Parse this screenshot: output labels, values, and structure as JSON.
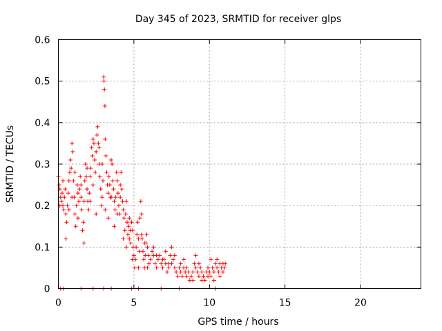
{
  "chart_data": {
    "type": "scatter",
    "title": "Day 345 of 2023, SRMTID for receiver glps",
    "xlabel": "GPS time / hours",
    "ylabel": "SRMTID / TECUs",
    "xlim": [
      0,
      24
    ],
    "ylim": [
      0,
      0.6
    ],
    "xticks": [
      0,
      5,
      10,
      15,
      20
    ],
    "xtick_labels": [
      "0",
      "5",
      "10",
      "15",
      "20"
    ],
    "yticks": [
      0,
      0.1,
      0.2,
      0.3,
      0.4,
      0.5,
      0.6
    ],
    "ytick_labels": [
      "0",
      "0.1",
      "0.2",
      "0.3",
      "0.4",
      "0.5",
      "0.6"
    ],
    "grid": true,
    "marker": "+",
    "color": "#ff0000",
    "series": [
      {
        "name": "SRMTID",
        "points": [
          [
            0.0,
            0.27
          ],
          [
            0.05,
            0.25
          ],
          [
            0.1,
            0.24
          ],
          [
            0.15,
            0.22
          ],
          [
            0.2,
            0.21
          ],
          [
            0.25,
            0.23
          ],
          [
            0.3,
            0.2
          ],
          [
            0.35,
            0.19
          ],
          [
            0.4,
            0.22
          ],
          [
            0.45,
            0.24
          ],
          [
            0.5,
            0.18
          ],
          [
            0.55,
            0.16
          ],
          [
            0.6,
            0.2
          ],
          [
            0.65,
            0.23
          ],
          [
            0.7,
            0.26
          ],
          [
            0.75,
            0.28
          ],
          [
            0.8,
            0.31
          ],
          [
            0.85,
            0.29
          ],
          [
            0.9,
            0.35
          ],
          [
            0.95,
            0.33
          ],
          [
            1.0,
            0.26
          ],
          [
            1.05,
            0.22
          ],
          [
            1.1,
            0.18
          ],
          [
            1.15,
            0.15
          ],
          [
            1.2,
            0.2
          ],
          [
            1.25,
            0.25
          ],
          [
            1.3,
            0.23
          ],
          [
            1.35,
            0.21
          ],
          [
            1.4,
            0.24
          ],
          [
            1.45,
            0.27
          ],
          [
            1.5,
            0.22
          ],
          [
            1.55,
            0.19
          ],
          [
            1.6,
            0.14
          ],
          [
            1.65,
            0.16
          ],
          [
            1.7,
            0.21
          ],
          [
            1.75,
            0.26
          ],
          [
            1.8,
            0.3
          ],
          [
            1.85,
            0.27
          ],
          [
            1.9,
            0.24
          ],
          [
            1.95,
            0.21
          ],
          [
            2.0,
            0.19
          ],
          [
            2.05,
            0.23
          ],
          [
            2.1,
            0.27
          ],
          [
            2.15,
            0.29
          ],
          [
            2.2,
            0.34
          ],
          [
            2.25,
            0.32
          ],
          [
            2.3,
            0.36
          ],
          [
            2.35,
            0.35
          ],
          [
            2.4,
            0.31
          ],
          [
            2.45,
            0.28
          ],
          [
            2.5,
            0.33
          ],
          [
            2.55,
            0.37
          ],
          [
            2.6,
            0.39
          ],
          [
            2.65,
            0.35
          ],
          [
            2.7,
            0.3
          ],
          [
            2.75,
            0.27
          ],
          [
            2.8,
            0.24
          ],
          [
            2.85,
            0.2
          ],
          [
            2.9,
            0.22
          ],
          [
            2.95,
            0.26
          ],
          [
            3.0,
            0.51
          ],
          [
            3.02,
            0.5
          ],
          [
            3.05,
            0.48
          ],
          [
            3.08,
            0.44
          ],
          [
            3.1,
            0.36
          ],
          [
            3.15,
            0.32
          ],
          [
            3.2,
            0.28
          ],
          [
            3.25,
            0.25
          ],
          [
            3.3,
            0.23
          ],
          [
            3.35,
            0.27
          ],
          [
            3.4,
            0.25
          ],
          [
            3.45,
            0.22
          ],
          [
            3.5,
            0.31
          ],
          [
            3.55,
            0.3
          ],
          [
            3.6,
            0.26
          ],
          [
            3.65,
            0.24
          ],
          [
            3.7,
            0.21
          ],
          [
            3.75,
            0.19
          ],
          [
            3.8,
            0.22
          ],
          [
            3.85,
            0.28
          ],
          [
            3.9,
            0.26
          ],
          [
            3.95,
            0.23
          ],
          [
            4.0,
            0.2
          ],
          [
            4.05,
            0.18
          ],
          [
            4.1,
            0.25
          ],
          [
            4.15,
            0.28
          ],
          [
            4.2,
            0.24
          ],
          [
            4.25,
            0.21
          ],
          [
            4.3,
            0.19
          ],
          [
            4.35,
            0.17
          ],
          [
            4.4,
            0.14
          ],
          [
            4.45,
            0.18
          ],
          [
            4.5,
            0.21
          ],
          [
            4.55,
            0.16
          ],
          [
            4.6,
            0.13
          ],
          [
            4.65,
            0.15
          ],
          [
            4.7,
            0.17
          ],
          [
            4.75,
            0.14
          ],
          [
            4.8,
            0.11
          ],
          [
            4.85,
            0.16
          ],
          [
            4.9,
            0.14
          ],
          [
            4.95,
            0.1
          ],
          [
            5.0,
            0.08
          ],
          [
            5.05,
            0.05
          ],
          [
            5.1,
            0.07
          ],
          [
            5.15,
            0.1
          ],
          [
            5.2,
            0.13
          ],
          [
            5.25,
            0.16
          ],
          [
            5.3,
            0.12
          ],
          [
            5.35,
            0.09
          ],
          [
            5.4,
            0.17
          ],
          [
            5.45,
            0.21
          ],
          [
            5.5,
            0.18
          ],
          [
            5.55,
            0.12
          ],
          [
            5.6,
            0.09
          ],
          [
            5.65,
            0.07
          ],
          [
            5.7,
            0.05
          ],
          [
            5.75,
            0.08
          ],
          [
            5.8,
            0.11
          ],
          [
            5.85,
            0.13
          ],
          [
            5.9,
            0.1
          ],
          [
            5.95,
            0.08
          ],
          [
            6.0,
            0.06
          ],
          [
            6.1,
            0.07
          ],
          [
            6.2,
            0.09
          ],
          [
            6.3,
            0.08
          ],
          [
            6.4,
            0.06
          ],
          [
            6.5,
            0.05
          ],
          [
            6.6,
            0.07
          ],
          [
            6.7,
            0.08
          ],
          [
            6.8,
            0.06
          ],
          [
            6.9,
            0.05
          ],
          [
            7.0,
            0.07
          ],
          [
            7.1,
            0.06
          ],
          [
            7.2,
            0.04
          ],
          [
            7.3,
            0.06
          ],
          [
            7.4,
            0.08
          ],
          [
            7.5,
            0.1
          ],
          [
            7.6,
            0.07
          ],
          [
            7.7,
            0.05
          ],
          [
            7.8,
            0.04
          ],
          [
            7.9,
            0.03
          ],
          [
            8.0,
            0.05
          ],
          [
            8.1,
            0.04
          ],
          [
            8.2,
            0.03
          ],
          [
            8.3,
            0.05
          ],
          [
            8.4,
            0.04
          ],
          [
            8.5,
            0.03
          ],
          [
            8.6,
            0.04
          ],
          [
            8.7,
            0.02
          ],
          [
            8.8,
            0.03
          ],
          [
            8.9,
            0.04
          ],
          [
            9.0,
            0.06
          ],
          [
            9.1,
            0.05
          ],
          [
            9.2,
            0.04
          ],
          [
            9.3,
            0.03
          ],
          [
            9.4,
            0.05
          ],
          [
            9.5,
            0.04
          ],
          [
            9.6,
            0.03
          ],
          [
            9.7,
            0.02
          ],
          [
            9.8,
            0.04
          ],
          [
            9.9,
            0.05
          ],
          [
            10.0,
            0.04
          ],
          [
            10.1,
            0.03
          ],
          [
            10.2,
            0.05
          ],
          [
            10.3,
            0.04
          ],
          [
            10.4,
            0.06
          ],
          [
            10.5,
            0.05
          ],
          [
            10.6,
            0.04
          ],
          [
            10.7,
            0.06
          ],
          [
            10.8,
            0.05
          ],
          [
            10.9,
            0.06
          ],
          [
            11.0,
            0.05
          ],
          [
            11.05,
            0.06
          ],
          [
            0.1,
            0.2
          ],
          [
            0.3,
            0.26
          ],
          [
            0.5,
            0.12
          ],
          [
            0.7,
            0.19
          ],
          [
            0.9,
            0.22
          ],
          [
            1.1,
            0.28
          ],
          [
            1.3,
            0.17
          ],
          [
            1.5,
            0.25
          ],
          [
            1.7,
            0.11
          ],
          [
            1.9,
            0.29
          ],
          [
            2.1,
            0.21
          ],
          [
            2.3,
            0.25
          ],
          [
            2.5,
            0.18
          ],
          [
            2.7,
            0.34
          ],
          [
            2.9,
            0.3
          ],
          [
            3.1,
            0.19
          ],
          [
            3.3,
            0.17
          ],
          [
            3.5,
            0.22
          ],
          [
            3.7,
            0.15
          ],
          [
            3.9,
            0.18
          ],
          [
            4.1,
            0.22
          ],
          [
            4.3,
            0.12
          ],
          [
            4.5,
            0.1
          ],
          [
            4.7,
            0.12
          ],
          [
            4.9,
            0.07
          ],
          [
            5.3,
            0.05
          ],
          [
            5.5,
            0.13
          ],
          [
            5.7,
            0.11
          ],
          [
            5.9,
            0.05
          ],
          [
            6.3,
            0.1
          ],
          [
            6.5,
            0.08
          ],
          [
            6.9,
            0.07
          ],
          [
            7.1,
            0.09
          ],
          [
            7.3,
            0.05
          ],
          [
            7.5,
            0.06
          ],
          [
            7.7,
            0.08
          ],
          [
            8.1,
            0.06
          ],
          [
            8.3,
            0.07
          ],
          [
            8.5,
            0.05
          ],
          [
            8.9,
            0.02
          ],
          [
            9.1,
            0.08
          ],
          [
            9.3,
            0.06
          ],
          [
            9.5,
            0.02
          ],
          [
            9.9,
            0.03
          ],
          [
            10.1,
            0.07
          ],
          [
            10.3,
            0.02
          ],
          [
            10.5,
            0.07
          ],
          [
            10.7,
            0.03
          ],
          [
            10.9,
            0.04
          ],
          [
            0.15,
            0.0
          ],
          [
            0.35,
            0.0
          ],
          [
            1.5,
            0.0
          ],
          [
            2.3,
            0.0
          ],
          [
            3.0,
            0.0
          ],
          [
            3.5,
            0.0
          ],
          [
            4.85,
            0.0
          ],
          [
            5.3,
            0.0
          ],
          [
            6.8,
            0.0
          ],
          [
            8.0,
            0.0
          ],
          [
            10.4,
            0.0
          ]
        ]
      }
    ]
  }
}
